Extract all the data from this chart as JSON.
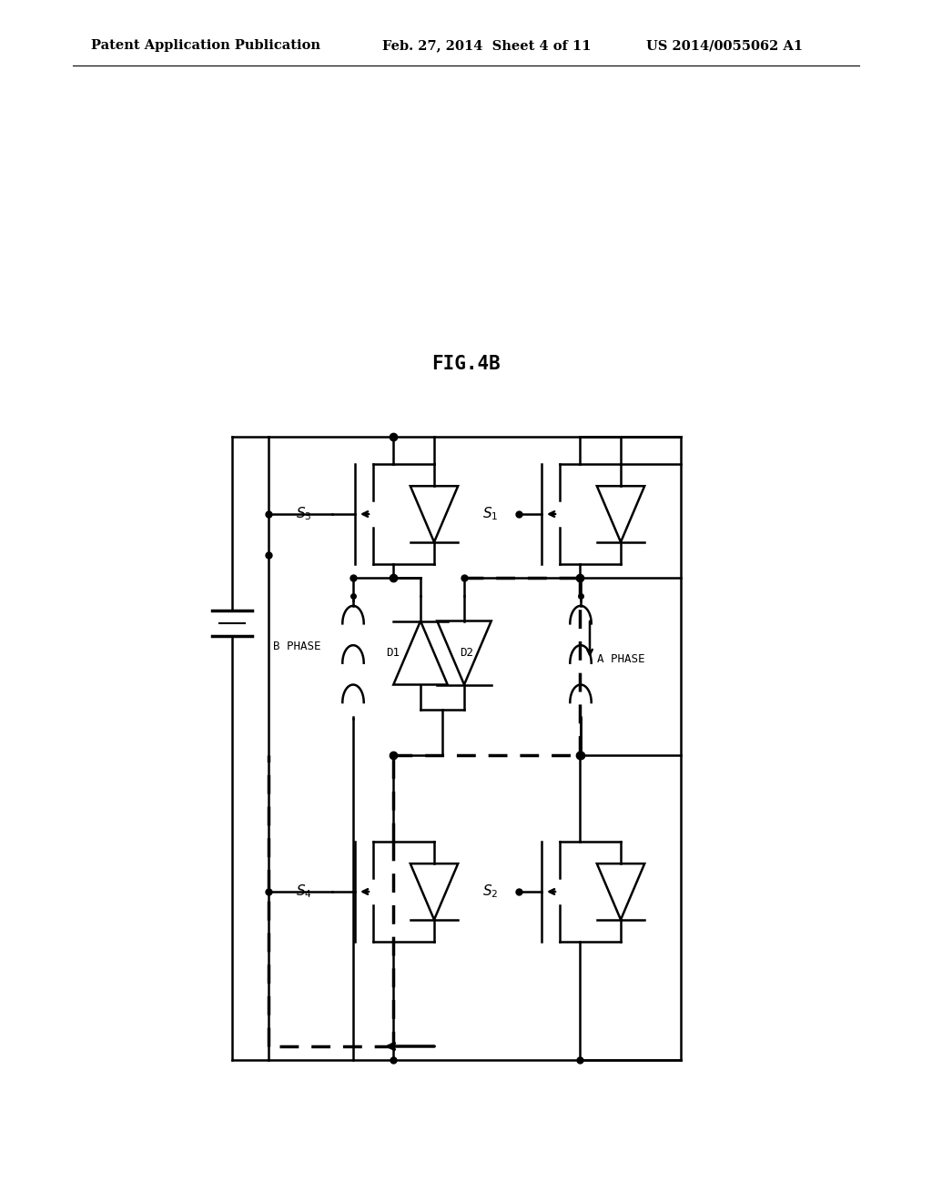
{
  "title": "FIG.4B",
  "header_left": "Patent Application Publication",
  "header_center": "Feb. 27, 2014  Sheet 4 of 11",
  "header_right": "US 2014/0055062 A1",
  "bg_color": "#ffffff",
  "line_color": "#000000",
  "fig_title_fontsize": 15,
  "header_fontsize": 10.5
}
